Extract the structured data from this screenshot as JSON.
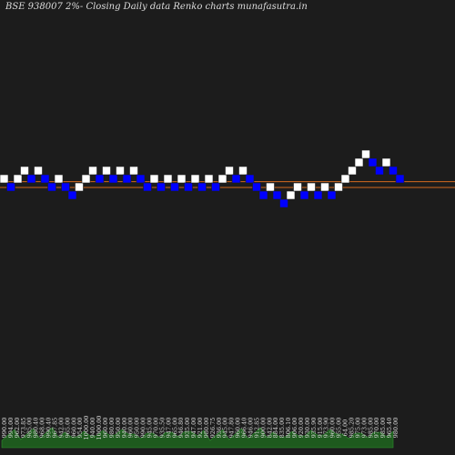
{
  "chart_data": {
    "type": "renko",
    "title": "BSE 938007 2%-  Closing Daily data  Renko  charts munafasutra.in",
    "brick_size_pct": 2,
    "bricks": [
      {
        "dir": "up",
        "level": 0
      },
      {
        "dir": "down",
        "level": -1
      },
      {
        "dir": "up",
        "level": 0
      },
      {
        "dir": "up",
        "level": 1
      },
      {
        "dir": "down",
        "level": 0
      },
      {
        "dir": "up",
        "level": 1
      },
      {
        "dir": "down",
        "level": 0
      },
      {
        "dir": "down",
        "level": -1
      },
      {
        "dir": "up",
        "level": 0
      },
      {
        "dir": "down",
        "level": -1
      },
      {
        "dir": "down",
        "level": -2
      },
      {
        "dir": "up",
        "level": -1
      },
      {
        "dir": "up",
        "level": 0
      },
      {
        "dir": "up",
        "level": 1
      },
      {
        "dir": "down",
        "level": 0
      },
      {
        "dir": "up",
        "level": 1
      },
      {
        "dir": "down",
        "level": 0
      },
      {
        "dir": "up",
        "level": 1
      },
      {
        "dir": "down",
        "level": 0
      },
      {
        "dir": "up",
        "level": 1
      },
      {
        "dir": "down",
        "level": 0
      },
      {
        "dir": "down",
        "level": -1
      },
      {
        "dir": "up",
        "level": 0
      },
      {
        "dir": "down",
        "level": -1
      },
      {
        "dir": "up",
        "level": 0
      },
      {
        "dir": "down",
        "level": -1
      },
      {
        "dir": "up",
        "level": 0
      },
      {
        "dir": "down",
        "level": -1
      },
      {
        "dir": "up",
        "level": 0
      },
      {
        "dir": "down",
        "level": -1
      },
      {
        "dir": "up",
        "level": 0
      },
      {
        "dir": "down",
        "level": -1
      },
      {
        "dir": "up",
        "level": 0
      },
      {
        "dir": "up",
        "level": 1
      },
      {
        "dir": "down",
        "level": 0
      },
      {
        "dir": "up",
        "level": 1
      },
      {
        "dir": "down",
        "level": 0
      },
      {
        "dir": "down",
        "level": -1
      },
      {
        "dir": "down",
        "level": -2
      },
      {
        "dir": "up",
        "level": -1
      },
      {
        "dir": "down",
        "level": -2
      },
      {
        "dir": "down",
        "level": -3
      },
      {
        "dir": "up",
        "level": -2
      },
      {
        "dir": "up",
        "level": -1
      },
      {
        "dir": "down",
        "level": -2
      },
      {
        "dir": "up",
        "level": -1
      },
      {
        "dir": "down",
        "level": -2
      },
      {
        "dir": "up",
        "level": -1
      },
      {
        "dir": "down",
        "level": -2
      },
      {
        "dir": "up",
        "level": -1
      },
      {
        "dir": "up",
        "level": 0
      },
      {
        "dir": "up",
        "level": 1
      },
      {
        "dir": "up",
        "level": 2
      },
      {
        "dir": "up",
        "level": 3
      },
      {
        "dir": "down",
        "level": 2
      },
      {
        "dir": "down",
        "level": 1
      },
      {
        "dir": "up",
        "level": 2
      },
      {
        "dir": "down",
        "level": 1
      },
      {
        "dir": "down",
        "level": 0
      }
    ],
    "reference_lines": [
      -0.55,
      0.15
    ],
    "x_tick_labels": [
      "990.00",
      "994.00",
      "962.00",
      "973.85",
      "985.00",
      "980.40",
      "968.00",
      "990.40",
      "967.85",
      "942.00",
      "965.00",
      "960.00",
      "954.00",
      "1000.00",
      "940.00",
      "1000.00",
      "960.00",
      "980.00",
      "950.00",
      "940.00",
      "960.00",
      "950.00",
      "990.00",
      "945.00",
      "970.00",
      "935.50",
      "947.00",
      "965.00",
      "946.80",
      "935.00",
      "947.00",
      "921.00",
      "980.00",
      "926.75",
      "936.00",
      "945.00",
      "947.80",
      "960.00",
      "966.40",
      "946.00",
      "912.85",
      "900.00",
      "842.00",
      "884.00",
      "835.00",
      "806.10",
      "906.00",
      "920.00",
      "930.00",
      "935.90",
      "915.00",
      "973.90",
      "960.00",
      "955.00",
      "64.00",
      "985.20",
      "975.00",
      "973.00",
      "985.00",
      "970.00",
      "985.00",
      "965.40",
      "980.00"
    ],
    "colors": {
      "background": "#1c1c1c",
      "up_brick": "#ffffff",
      "down_brick": "#0000ff",
      "reference_line": "#d2691e",
      "volume": "#1e5a1e",
      "volume_stroke": "#2f8f2f"
    }
  }
}
